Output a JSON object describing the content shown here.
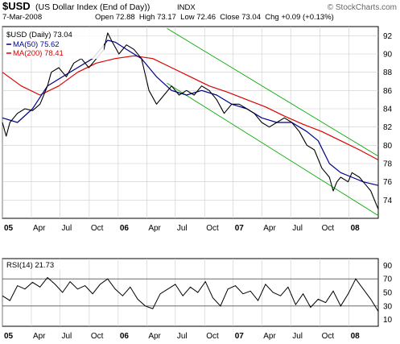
{
  "header": {
    "symbol": "$USD",
    "name": "(US Dollar Index (End of Day))",
    "exchange": "INDX",
    "date": "7-Mar-2008",
    "ohlc": "Open 72.88  High 73.17  Low 72.46  Close 73.04  Chg +0.09 (+0.13%)",
    "copyright": "© StockCharts.com"
  },
  "legend": {
    "price": "$USD (Daily) 73.04",
    "ma50": "MA(50) 75.62",
    "ma200": "MA(200) 78.41"
  },
  "rsi_label": "RSI(14) 21.73",
  "colors": {
    "price": "#000000",
    "down": "#cc0000",
    "ma50": "#00008b",
    "ma200": "#dd0000",
    "channel": "#00aa00",
    "grid": "#cccccc",
    "frame": "#000000",
    "rsi_fill": "#888888"
  },
  "chart_data": [
    {
      "type": "line",
      "title": "$USD (Daily) 73.04",
      "ylim": [
        72,
        93
      ],
      "y_ticks": [
        74,
        76,
        78,
        80,
        82,
        84,
        86,
        88,
        90,
        92
      ],
      "x_labels": [
        "05",
        "Apr",
        "Jul",
        "Oct",
        "06",
        "Apr",
        "Jul",
        "Oct",
        "07",
        "Apr",
        "Jul",
        "Oct",
        "08"
      ],
      "x_label_t": [
        0.0,
        0.077,
        0.153,
        0.231,
        0.308,
        0.384,
        0.46,
        0.538,
        0.614,
        0.69,
        0.767,
        0.845,
        0.922
      ],
      "series": [
        {
          "name": "$USD (Daily) 73.04",
          "x": [
            0.0,
            0.01,
            0.02,
            0.04,
            0.06,
            0.08,
            0.1,
            0.12,
            0.13,
            0.15,
            0.17,
            0.19,
            0.21,
            0.23,
            0.25,
            0.27,
            0.28,
            0.29,
            0.31,
            0.33,
            0.35,
            0.37,
            0.39,
            0.41,
            0.43,
            0.45,
            0.47,
            0.49,
            0.51,
            0.53,
            0.55,
            0.57,
            0.59,
            0.61,
            0.63,
            0.65,
            0.67,
            0.69,
            0.71,
            0.73,
            0.75,
            0.77,
            0.79,
            0.81,
            0.83,
            0.85,
            0.87,
            0.88,
            0.89,
            0.9,
            0.92,
            0.93,
            0.95,
            0.96,
            0.97,
            0.98,
            0.99,
            1.0
          ],
          "values": [
            82.5,
            81.0,
            82.5,
            83.5,
            84.0,
            83.8,
            84.5,
            86.5,
            88.0,
            88.5,
            87.5,
            89.0,
            89.5,
            88.5,
            89.5,
            90.5,
            92.3,
            91.5,
            90.0,
            91.0,
            90.5,
            89.5,
            86.0,
            84.5,
            85.5,
            86.5,
            85.5,
            86.0,
            85.5,
            86.5,
            86.0,
            85.0,
            83.5,
            84.5,
            84.5,
            84.0,
            83.5,
            82.5,
            82.0,
            82.5,
            83.0,
            82.5,
            81.5,
            80.0,
            79.5,
            77.5,
            76.5,
            75.0,
            76.0,
            76.5,
            76.0,
            77.0,
            76.5,
            76.0,
            75.5,
            75.0,
            74.0,
            73.0
          ]
        },
        {
          "name": "MA(50) 75.62",
          "x": [
            0.0,
            0.04,
            0.08,
            0.12,
            0.16,
            0.2,
            0.24,
            0.28,
            0.3,
            0.33,
            0.37,
            0.41,
            0.45,
            0.49,
            0.53,
            0.57,
            0.61,
            0.65,
            0.69,
            0.73,
            0.77,
            0.81,
            0.84,
            0.87,
            0.9,
            0.93,
            0.96,
            1.0
          ],
          "values": [
            83.0,
            82.5,
            84.0,
            86.5,
            87.5,
            88.5,
            89.5,
            91.5,
            91.3,
            90.5,
            89.5,
            87.5,
            86.0,
            85.5,
            86.0,
            85.5,
            84.5,
            84.0,
            83.0,
            82.5,
            82.5,
            81.5,
            80.5,
            78.0,
            77.0,
            76.5,
            76.0,
            75.6
          ]
        },
        {
          "name": "MA(200) 78.41",
          "x": [
            0.0,
            0.05,
            0.1,
            0.15,
            0.2,
            0.25,
            0.3,
            0.35,
            0.4,
            0.45,
            0.5,
            0.55,
            0.6,
            0.65,
            0.7,
            0.75,
            0.8,
            0.85,
            0.9,
            0.95,
            1.0
          ],
          "values": [
            88.0,
            86.5,
            85.5,
            86.5,
            88.0,
            89.0,
            89.5,
            89.8,
            89.5,
            88.5,
            87.5,
            86.5,
            85.8,
            85.0,
            84.2,
            83.2,
            82.3,
            81.5,
            80.5,
            79.5,
            78.4
          ]
        },
        {
          "name": "",
          "x": [
            0.438,
            1.0
          ],
          "values": [
            92.8,
            78.8
          ]
        },
        {
          "name": "",
          "x": [
            0.438,
            1.0
          ],
          "values": [
            86.8,
            72.3
          ]
        }
      ]
    },
    {
      "type": "line",
      "title": "RSI(14) 21.73",
      "ylim": [
        0,
        100
      ],
      "y_ticks": [
        10,
        30,
        50,
        70,
        90
      ],
      "reference_lines": [
        30,
        70
      ],
      "series": [
        {
          "name": "RSI(14) 21.73",
          "x": [
            0.0,
            0.02,
            0.04,
            0.06,
            0.08,
            0.1,
            0.12,
            0.14,
            0.16,
            0.18,
            0.2,
            0.22,
            0.24,
            0.26,
            0.28,
            0.3,
            0.32,
            0.34,
            0.36,
            0.38,
            0.4,
            0.42,
            0.44,
            0.46,
            0.48,
            0.5,
            0.52,
            0.54,
            0.56,
            0.58,
            0.6,
            0.62,
            0.64,
            0.66,
            0.68,
            0.7,
            0.72,
            0.74,
            0.76,
            0.78,
            0.8,
            0.82,
            0.84,
            0.86,
            0.88,
            0.9,
            0.92,
            0.94,
            0.96,
            0.98,
            1.0
          ],
          "values": [
            45,
            38,
            60,
            55,
            65,
            58,
            72,
            62,
            50,
            66,
            55,
            60,
            48,
            62,
            70,
            55,
            45,
            58,
            40,
            30,
            26,
            48,
            55,
            62,
            45,
            58,
            50,
            66,
            42,
            30,
            55,
            60,
            48,
            52,
            38,
            62,
            50,
            45,
            58,
            32,
            48,
            28,
            40,
            35,
            52,
            30,
            48,
            70,
            55,
            40,
            22
          ]
        }
      ]
    }
  ]
}
